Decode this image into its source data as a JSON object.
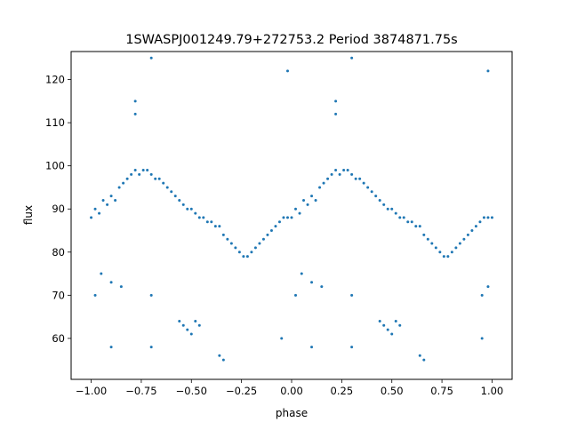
{
  "chart_data": {
    "type": "scatter",
    "title": "1SWASPJ001249.79+272753.2 Period 3874871.75s",
    "xlabel": "phase",
    "ylabel": "flux",
    "xlim": [
      -1.1,
      1.1
    ],
    "ylim": [
      50.5,
      126.5
    ],
    "x_ticks": [
      -1.0,
      -0.75,
      -0.5,
      -0.25,
      0.0,
      0.25,
      0.5,
      0.75,
      1.0
    ],
    "x_tick_labels": [
      "−1.00",
      "−0.75",
      "−0.50",
      "−0.25",
      "0.00",
      "0.25",
      "0.50",
      "0.75",
      "1.00"
    ],
    "y_ticks": [
      60,
      70,
      80,
      90,
      100,
      110,
      120
    ],
    "y_tick_labels": [
      "60",
      "70",
      "80",
      "90",
      "100",
      "110",
      "120"
    ],
    "grid": false,
    "legend": false,
    "marker_color": "#1f77b4",
    "series": [
      {
        "points": [
          [
            -1.0,
            88
          ],
          [
            -0.98,
            90
          ],
          [
            -0.96,
            89
          ],
          [
            -0.94,
            92
          ],
          [
            -0.92,
            91
          ],
          [
            -0.9,
            93
          ],
          [
            -0.88,
            92
          ],
          [
            -0.86,
            95
          ],
          [
            -0.84,
            96
          ],
          [
            -0.82,
            97
          ],
          [
            -0.8,
            98
          ],
          [
            -0.78,
            99
          ],
          [
            -0.76,
            98
          ],
          [
            -0.74,
            99
          ],
          [
            -0.72,
            99
          ],
          [
            -0.7,
            98
          ],
          [
            -0.68,
            97
          ],
          [
            -0.66,
            97
          ],
          [
            -0.64,
            96
          ],
          [
            -0.62,
            95
          ],
          [
            -0.6,
            94
          ],
          [
            -0.58,
            93
          ],
          [
            -0.56,
            92
          ],
          [
            -0.54,
            91
          ],
          [
            -0.52,
            90
          ],
          [
            -0.5,
            90
          ],
          [
            -0.48,
            89
          ],
          [
            -0.46,
            88
          ],
          [
            -0.44,
            88
          ],
          [
            -0.42,
            87
          ],
          [
            -0.4,
            87
          ],
          [
            -0.38,
            86
          ],
          [
            -0.36,
            86
          ],
          [
            -0.34,
            84
          ],
          [
            -0.32,
            83
          ],
          [
            -0.3,
            82
          ],
          [
            -0.28,
            81
          ],
          [
            -0.26,
            80
          ],
          [
            -0.24,
            79
          ],
          [
            -0.22,
            79
          ],
          [
            -0.2,
            80
          ],
          [
            -0.18,
            81
          ],
          [
            -0.16,
            82
          ],
          [
            -0.14,
            83
          ],
          [
            -0.12,
            84
          ],
          [
            -0.1,
            85
          ],
          [
            -0.08,
            86
          ],
          [
            -0.06,
            87
          ],
          [
            -0.04,
            88
          ],
          [
            -0.02,
            88
          ],
          [
            0.0,
            88
          ],
          [
            0.02,
            90
          ],
          [
            0.04,
            89
          ],
          [
            0.06,
            92
          ],
          [
            0.08,
            91
          ],
          [
            0.1,
            93
          ],
          [
            0.12,
            92
          ],
          [
            0.14,
            95
          ],
          [
            0.16,
            96
          ],
          [
            0.18,
            97
          ],
          [
            0.2,
            98
          ],
          [
            0.22,
            99
          ],
          [
            0.24,
            98
          ],
          [
            0.26,
            99
          ],
          [
            0.28,
            99
          ],
          [
            0.3,
            98
          ],
          [
            0.32,
            97
          ],
          [
            0.34,
            97
          ],
          [
            0.36,
            96
          ],
          [
            0.38,
            95
          ],
          [
            0.4,
            94
          ],
          [
            0.42,
            93
          ],
          [
            0.44,
            92
          ],
          [
            0.46,
            91
          ],
          [
            0.48,
            90
          ],
          [
            0.5,
            90
          ],
          [
            0.52,
            89
          ],
          [
            0.54,
            88
          ],
          [
            0.56,
            88
          ],
          [
            0.58,
            87
          ],
          [
            0.6,
            87
          ],
          [
            0.62,
            86
          ],
          [
            0.64,
            86
          ],
          [
            0.66,
            84
          ],
          [
            0.68,
            83
          ],
          [
            0.7,
            82
          ],
          [
            0.72,
            81
          ],
          [
            0.74,
            80
          ],
          [
            0.76,
            79
          ],
          [
            0.78,
            79
          ],
          [
            0.8,
            80
          ],
          [
            0.82,
            81
          ],
          [
            0.84,
            82
          ],
          [
            0.86,
            83
          ],
          [
            0.88,
            84
          ],
          [
            0.9,
            85
          ],
          [
            0.92,
            86
          ],
          [
            0.94,
            87
          ],
          [
            0.96,
            88
          ],
          [
            0.98,
            88
          ],
          [
            1.0,
            88
          ],
          [
            -0.78,
            115
          ],
          [
            -0.78,
            112
          ],
          [
            0.22,
            115
          ],
          [
            0.22,
            112
          ],
          [
            -0.7,
            125
          ],
          [
            0.3,
            125
          ],
          [
            -0.02,
            122
          ],
          [
            0.98,
            122
          ],
          [
            -0.56,
            64
          ],
          [
            -0.54,
            63
          ],
          [
            -0.52,
            62
          ],
          [
            -0.5,
            61
          ],
          [
            -0.48,
            64
          ],
          [
            -0.46,
            63
          ],
          [
            0.44,
            64
          ],
          [
            0.46,
            63
          ],
          [
            0.48,
            62
          ],
          [
            0.5,
            61
          ],
          [
            0.52,
            64
          ],
          [
            0.54,
            63
          ],
          [
            -0.36,
            56
          ],
          [
            -0.34,
            55
          ],
          [
            0.64,
            56
          ],
          [
            0.66,
            55
          ],
          [
            -0.9,
            58
          ],
          [
            -0.7,
            58
          ],
          [
            -0.05,
            60
          ],
          [
            0.1,
            58
          ],
          [
            0.3,
            58
          ],
          [
            0.95,
            60
          ],
          [
            -0.98,
            70
          ],
          [
            -0.95,
            75
          ],
          [
            -0.9,
            73
          ],
          [
            -0.85,
            72
          ],
          [
            -0.7,
            70
          ],
          [
            0.02,
            70
          ],
          [
            0.05,
            75
          ],
          [
            0.1,
            73
          ],
          [
            0.15,
            72
          ],
          [
            0.3,
            70
          ],
          [
            0.95,
            70
          ],
          [
            0.98,
            72
          ]
        ]
      }
    ]
  }
}
